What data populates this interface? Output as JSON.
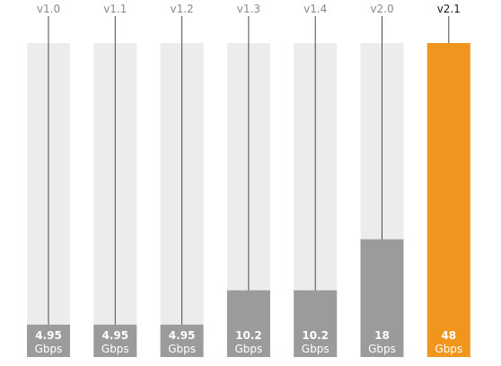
{
  "chart_data": {
    "type": "bar",
    "categories": [
      "v1.0",
      "v1.1",
      "v1.2",
      "v1.3",
      "v1.4",
      "v2.0",
      "v2.1"
    ],
    "values": [
      4.95,
      4.95,
      4.95,
      10.2,
      10.2,
      18,
      48
    ],
    "value_labels": [
      "4.95",
      "4.95",
      "4.95",
      "10.2",
      "10.2",
      "18",
      "48"
    ],
    "unit": "Gbps",
    "ylim": [
      0,
      48
    ],
    "highlight": "v2.1",
    "grid": false,
    "colors": {
      "track": "#ececec",
      "bar": "#9b9b9b",
      "highlight": "#f0961e",
      "line": "#4a4a4a",
      "label": "#8a8a8a",
      "highlight_label": "#1a1a1a"
    }
  }
}
